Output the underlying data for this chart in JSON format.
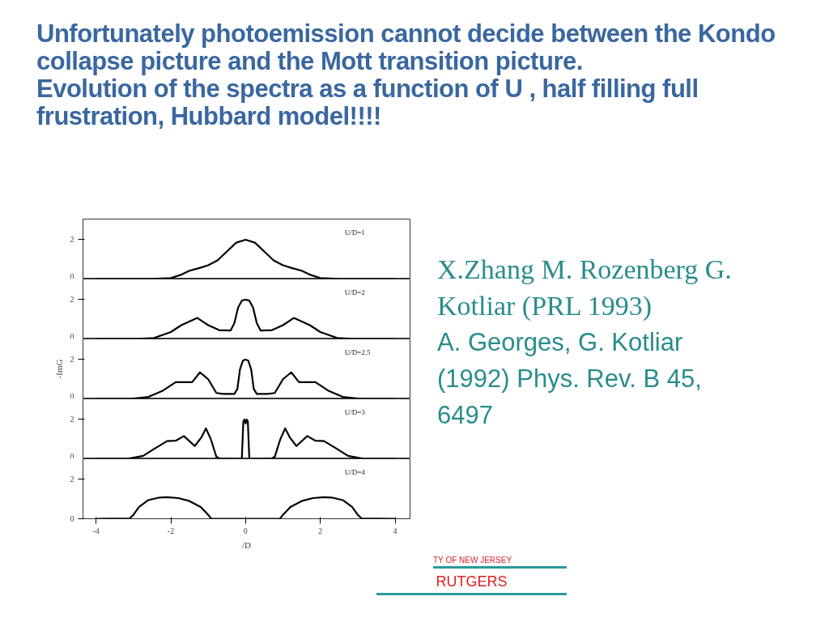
{
  "chart_data": [
    {
      "type": "line",
      "title": "Unfortunately photoemission cannot decide between the Kondo collapse picture and the Mott transition picture.\nEvolution of the spectra as a function of U  , half filling full frustration, Hubbard model!!!!",
      "xlim": [
        -4.35,
        4.4
      ],
      "ylim": [
        0,
        3.05
      ],
      "yticks": [
        0,
        2
      ],
      "tick_labels": "y",
      "grid": false,
      "annotations": [
        "U/D=1",
        "X.Zhang M. Rozenberg G. Kotliar (PRL 1993)",
        "A. Georges, G. Kotliar (1992) Phys. Rev. B 45, 6497",
        "TY OF NEW JERSEY",
        "RUTGERS"
      ],
      "series": [
        {
          "color": "#000000",
          "x": [
            -4,
            -2.5,
            -2,
            -1.75,
            -1.5,
            -1.25,
            -1,
            -0.75,
            -0.5,
            -0.25,
            0,
            0.25,
            0.5,
            0.75,
            1,
            1.25,
            1.5,
            1.75,
            2,
            2.5,
            4
          ],
          "values": [
            0,
            0.01,
            0.05,
            0.2,
            0.42,
            0.55,
            0.7,
            0.95,
            1.4,
            1.85,
            2.0,
            1.85,
            1.4,
            0.95,
            0.7,
            0.55,
            0.42,
            0.2,
            0.05,
            0.01,
            0
          ]
        }
      ]
    },
    {
      "type": "line",
      "xlim": [
        -4.35,
        4.4
      ],
      "ylim": [
        0,
        3.05
      ],
      "yticks": [
        0,
        2
      ],
      "tick_labels": "y",
      "grid": false,
      "annotations": [
        "U/D=2"
      ],
      "series": [
        {
          "color": "#000000",
          "x": [
            -4,
            -2.95,
            -2.45,
            -2.0,
            -1.72,
            -1.29,
            -1.0,
            -0.71,
            -0.4,
            -0.3,
            -0.2,
            -0.1,
            0,
            0.1,
            0.2,
            0.3,
            0.4,
            0.71,
            1.0,
            1.29,
            1.72,
            2.0,
            2.45,
            2.95,
            4
          ],
          "values": [
            0,
            0,
            0.05,
            0.35,
            0.7,
            1.07,
            0.7,
            0.45,
            0.43,
            0.8,
            1.6,
            1.95,
            2.0,
            1.95,
            1.6,
            0.8,
            0.43,
            0.45,
            0.7,
            1.07,
            0.7,
            0.35,
            0.05,
            0,
            0
          ]
        }
      ]
    },
    {
      "type": "line",
      "xlim": [
        -4.35,
        4.4
      ],
      "ylim": [
        0,
        3.05
      ],
      "yticks": [
        0,
        2
      ],
      "tick_labels": "y",
      "grid": false,
      "ylabel": "-ImG",
      "annotations": [
        "U/D=2.5"
      ],
      "series": [
        {
          "color": "#000000",
          "x": [
            -4,
            -3.1,
            -2.6,
            -2.23,
            -1.87,
            -1.43,
            -1.22,
            -1.0,
            -0.78,
            -0.6,
            -0.3,
            -0.22,
            -0.15,
            -0.07,
            0,
            0.07,
            0.15,
            0.22,
            0.3,
            0.6,
            0.78,
            1.0,
            1.22,
            1.43,
            1.87,
            2.23,
            2.6,
            3.1,
            4
          ],
          "values": [
            0,
            0,
            0.1,
            0.4,
            0.85,
            0.85,
            1.35,
            1.0,
            0.3,
            0.25,
            0.25,
            0.5,
            1.5,
            1.95,
            2.0,
            1.95,
            1.5,
            0.5,
            0.25,
            0.25,
            0.3,
            1.0,
            1.35,
            0.85,
            0.85,
            0.4,
            0.1,
            0,
            0
          ]
        }
      ]
    },
    {
      "type": "line",
      "xlim": [
        -4.35,
        4.4
      ],
      "ylim": [
        0,
        3.05
      ],
      "yticks": [
        0,
        2
      ],
      "tick_labels": "y",
      "grid": false,
      "annotations": [
        "U/D=3"
      ],
      "series": [
        {
          "color": "#000000",
          "x": [
            -4,
            -3.17,
            -2.74,
            -2.45,
            -2.1,
            -1.87,
            -1.65,
            -1.36,
            -1.18,
            -1.06,
            -0.93,
            -0.78,
            -0.7,
            -0.1,
            -0.06,
            -0.03,
            0,
            0.03,
            0.06,
            0.1,
            0.7,
            0.78,
            0.93,
            1.06,
            1.18,
            1.36,
            1.65,
            1.87,
            2.1,
            2.45,
            2.74,
            3.17,
            4
          ],
          "values": [
            0,
            0,
            0.15,
            0.5,
            0.9,
            0.92,
            1.16,
            0.65,
            1.1,
            1.55,
            1.0,
            0.1,
            0.02,
            0,
            1.9,
            2.0,
            1.8,
            2.0,
            1.9,
            0,
            0.02,
            0.1,
            1.0,
            1.55,
            1.1,
            0.65,
            1.16,
            0.92,
            0.9,
            0.5,
            0.15,
            0,
            0
          ]
        }
      ]
    },
    {
      "type": "line",
      "xlim": [
        -4.35,
        4.4
      ],
      "ylim": [
        0,
        3.05
      ],
      "xticks": [
        -4,
        -2,
        0,
        2,
        4
      ],
      "yticks": [
        0,
        2
      ],
      "grid": false,
      "xlabel": "/D",
      "annotations": [
        "U/D=4"
      ],
      "series": [
        {
          "color": "#000000",
          "x": [
            -4,
            -3.1,
            -3.0,
            -2.85,
            -2.6,
            -2.3,
            -2.1,
            -1.8,
            -1.5,
            -1.2,
            -1.0,
            -0.92,
            0,
            0.92,
            1.0,
            1.2,
            1.5,
            1.8,
            2.1,
            2.3,
            2.6,
            2.85,
            3.0,
            3.1,
            4
          ],
          "values": [
            0,
            0.02,
            0.2,
            0.6,
            0.95,
            1.08,
            1.1,
            1.05,
            0.9,
            0.6,
            0.2,
            0,
            0,
            0,
            0.2,
            0.6,
            0.9,
            1.05,
            1.1,
            1.08,
            0.95,
            0.6,
            0.2,
            0.02,
            0
          ]
        }
      ]
    }
  ]
}
